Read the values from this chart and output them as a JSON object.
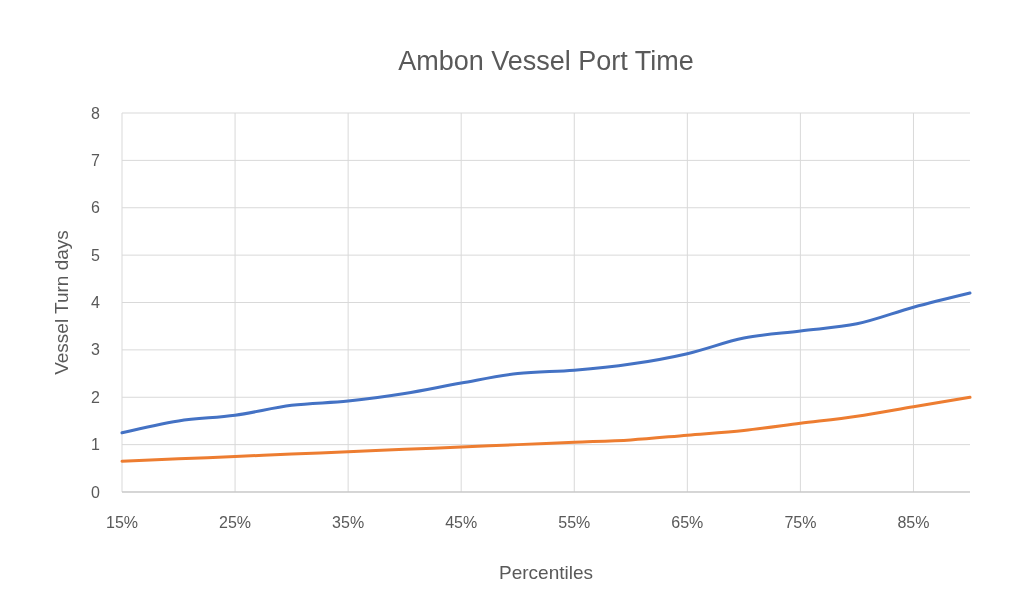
{
  "chart_data": {
    "type": "line",
    "title": "Ambon Vessel Port Time",
    "xlabel": "Percentiles",
    "ylabel": "Vessel Turn days",
    "x": [
      15,
      20,
      25,
      30,
      35,
      40,
      45,
      50,
      55,
      60,
      65,
      70,
      75,
      80,
      85,
      90
    ],
    "series": [
      {
        "color": "#4472c4",
        "values": [
          1.25,
          1.5,
          1.62,
          1.83,
          1.92,
          2.08,
          2.3,
          2.5,
          2.57,
          2.7,
          2.92,
          3.25,
          3.4,
          3.55,
          3.9,
          4.2
        ]
      },
      {
        "color": "#ed7d31",
        "values": [
          0.65,
          0.7,
          0.75,
          0.8,
          0.85,
          0.9,
          0.95,
          1.0,
          1.05,
          1.1,
          1.2,
          1.3,
          1.45,
          1.6,
          1.8,
          2.0
        ]
      }
    ],
    "xlim": [
      15,
      90
    ],
    "xticks": [
      {
        "value": 15,
        "label": "15%"
      },
      {
        "value": 25,
        "label": "25%"
      },
      {
        "value": 35,
        "label": "35%"
      },
      {
        "value": 45,
        "label": "45%"
      },
      {
        "value": 55,
        "label": "55%"
      },
      {
        "value": 65,
        "label": "65%"
      },
      {
        "value": 75,
        "label": "75%"
      },
      {
        "value": 85,
        "label": "85%"
      }
    ],
    "ylim": [
      0,
      8
    ],
    "yticks": [
      0,
      1,
      2,
      3,
      4,
      5,
      6,
      7,
      8
    ],
    "grid": true,
    "marker": "none",
    "line_style": "solid"
  }
}
